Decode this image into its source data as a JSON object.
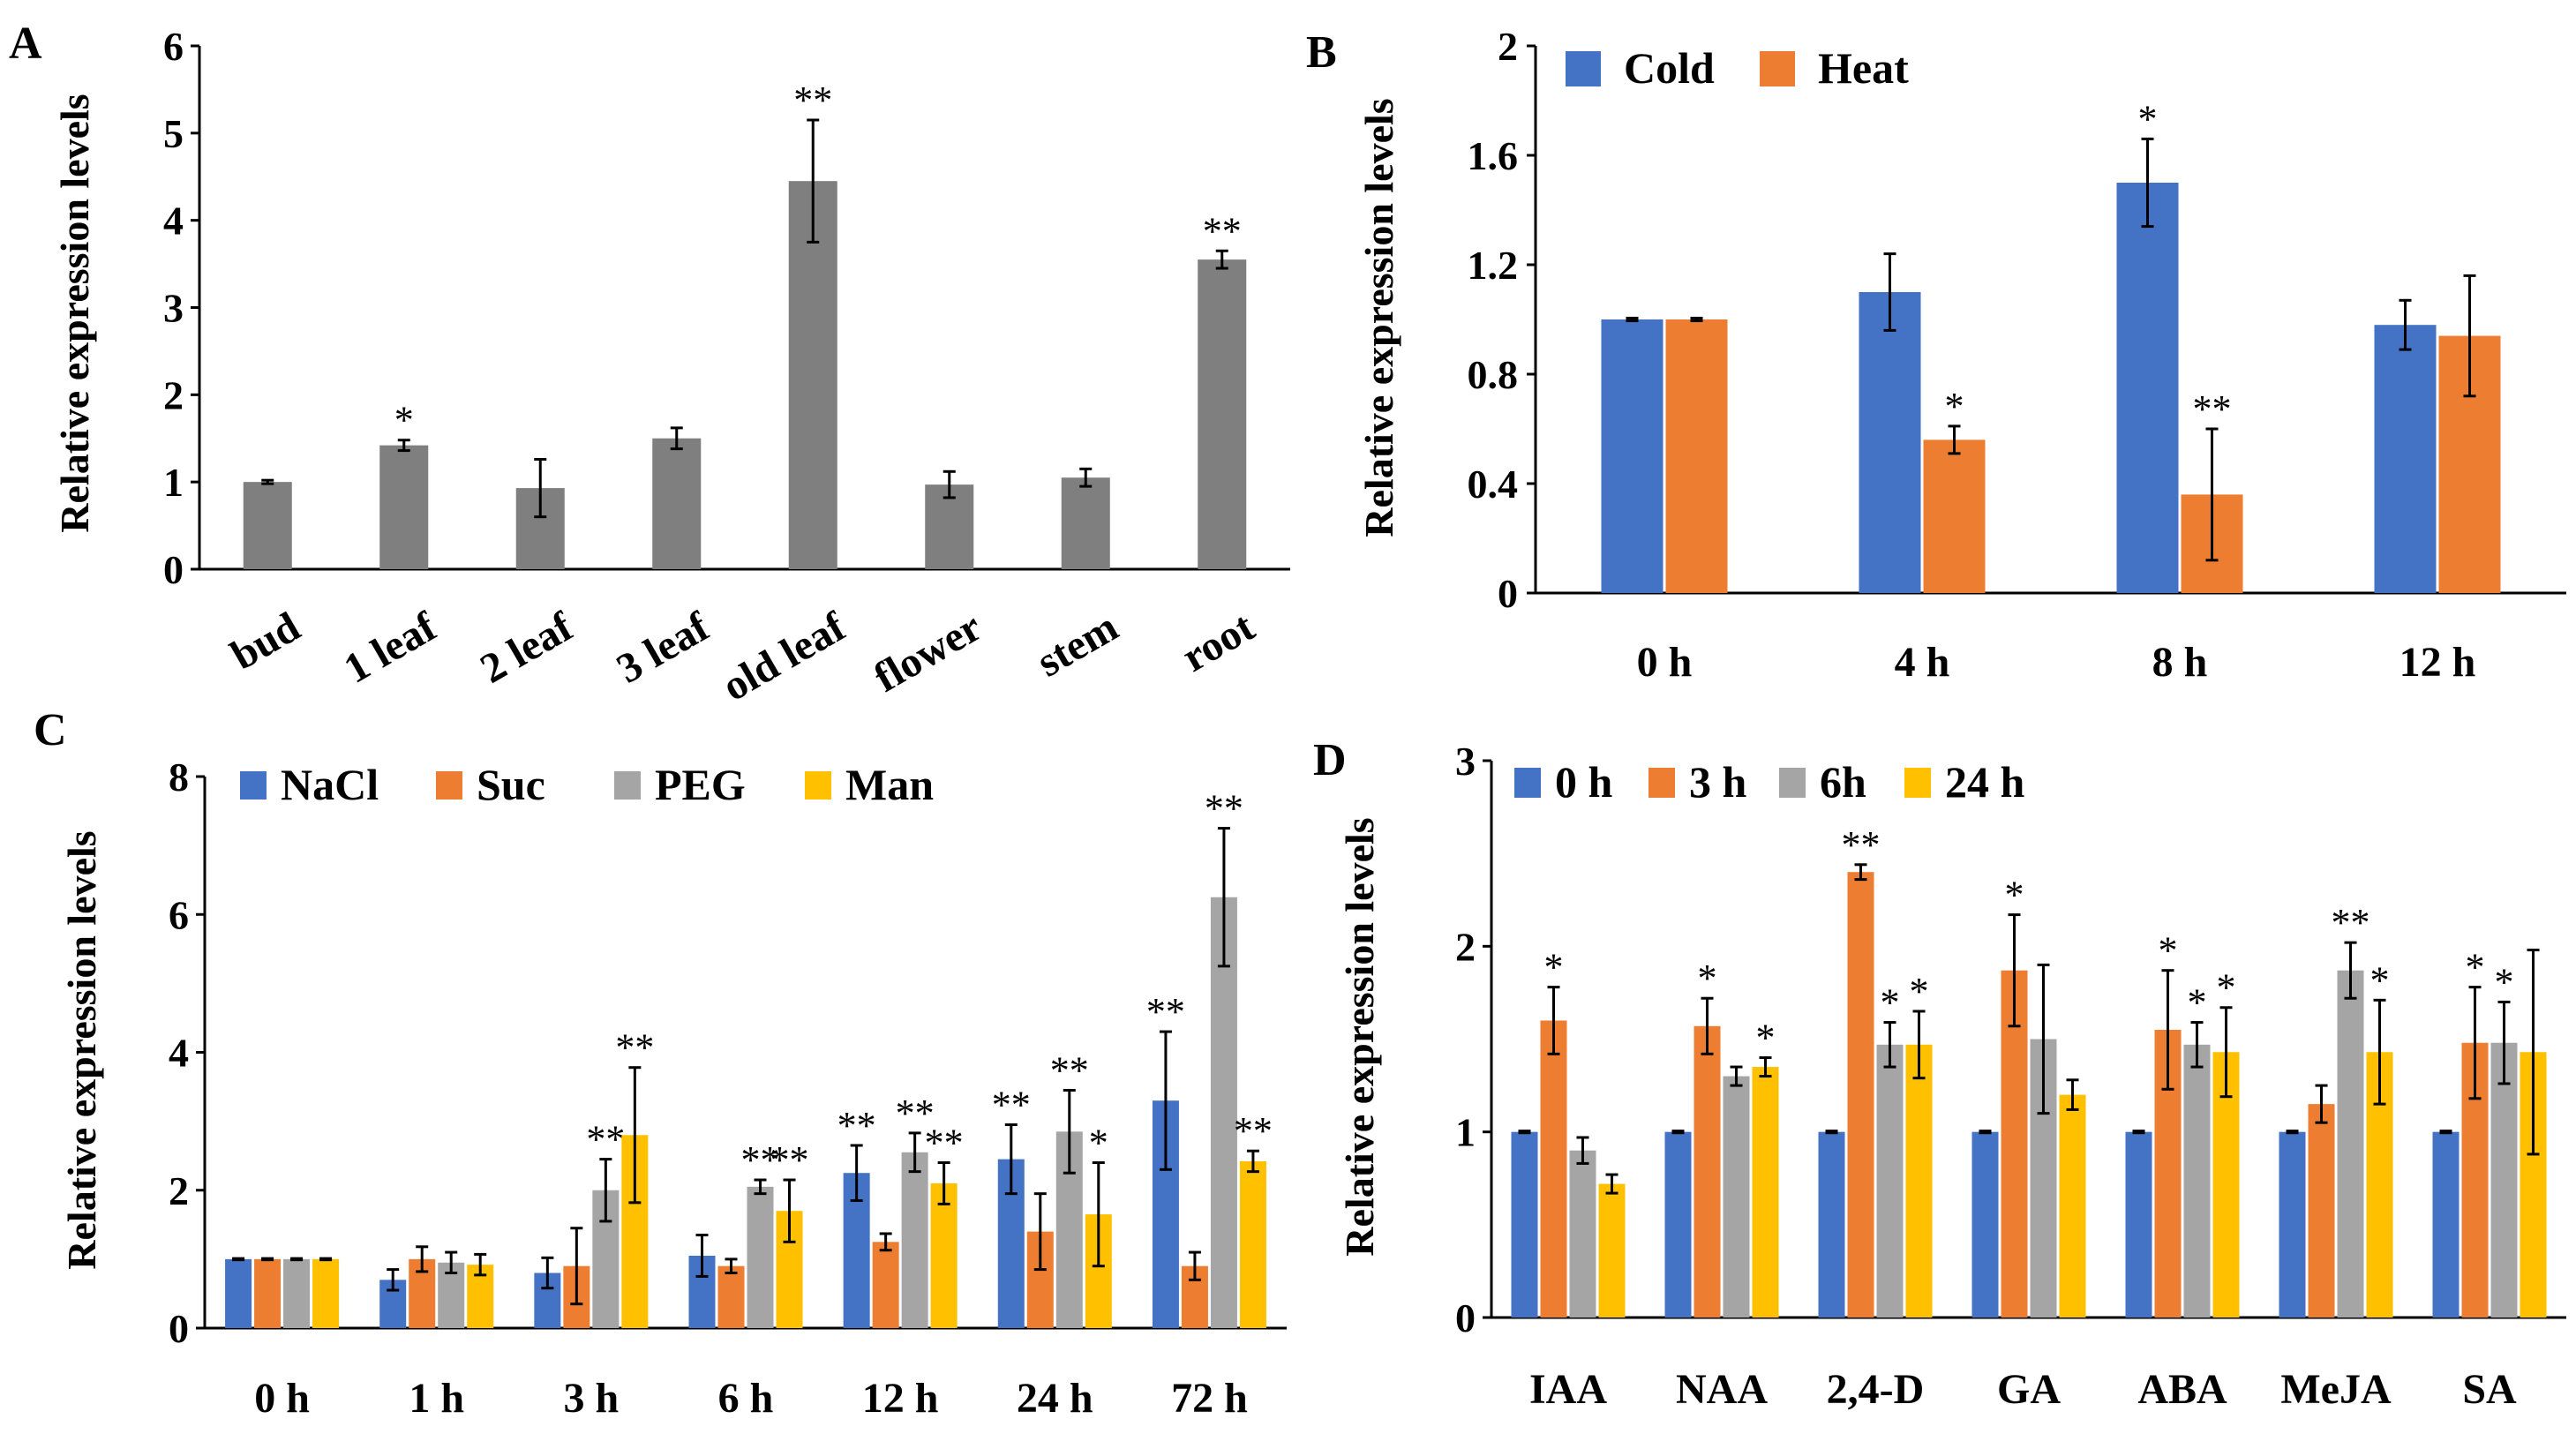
{
  "chart_data": [
    {
      "panel": "A",
      "type": "bar",
      "ylabel": "Relative expression levels",
      "ylim": [
        0,
        6
      ],
      "yticks": [
        "0",
        "1",
        "2",
        "3",
        "4",
        "5",
        "6"
      ],
      "categories": [
        "bud",
        "1 leaf",
        "2 leaf",
        "3 leaf",
        "old leaf",
        "flower",
        "stem",
        "root"
      ],
      "series": [
        {
          "name": "",
          "color": "#7f7f7f",
          "values": [
            1.0,
            1.42,
            0.93,
            1.5,
            4.45,
            0.97,
            1.05,
            3.55
          ],
          "errors": [
            0.02,
            0.06,
            0.33,
            0.12,
            0.7,
            0.15,
            0.1,
            0.1
          ],
          "sig": [
            "",
            "*",
            "",
            "",
            "**",
            "",
            "",
            "**"
          ]
        }
      ]
    },
    {
      "panel": "B",
      "type": "bar",
      "ylabel": "Relative expression levels",
      "ylim": [
        0,
        2
      ],
      "yticks": [
        "0",
        "0.4",
        "0.8",
        "1.2",
        "1.6",
        "2"
      ],
      "categories": [
        "0 h",
        "4 h",
        "8 h",
        "12 h"
      ],
      "legend": [
        "Cold",
        "Heat"
      ],
      "series": [
        {
          "name": "Cold",
          "color": "#4472c4",
          "values": [
            1.0,
            1.1,
            1.5,
            0.98
          ],
          "errors": [
            0.005,
            0.14,
            0.16,
            0.09
          ],
          "sig": [
            "",
            "",
            "*",
            ""
          ]
        },
        {
          "name": "Heat",
          "color": "#ed7d31",
          "values": [
            1.0,
            0.56,
            0.36,
            0.94
          ],
          "errors": [
            0.005,
            0.05,
            0.24,
            0.22
          ],
          "sig": [
            "",
            "*",
            "**",
            ""
          ]
        }
      ]
    },
    {
      "panel": "C",
      "type": "bar",
      "ylabel": "Relative expression levels",
      "ylim": [
        0,
        8
      ],
      "yticks": [
        "0",
        "2",
        "4",
        "6",
        "8"
      ],
      "categories": [
        "0 h",
        "1 h",
        "3 h",
        "6 h",
        "12 h",
        "24 h",
        "72 h"
      ],
      "legend": [
        "NaCl",
        "Suc",
        "PEG",
        "Man"
      ],
      "series": [
        {
          "name": "NaCl",
          "color": "#4472c4",
          "values": [
            1.0,
            0.7,
            0.8,
            1.05,
            2.25,
            2.45,
            3.3
          ],
          "errors": [
            0.01,
            0.15,
            0.22,
            0.3,
            0.4,
            0.5,
            1.0
          ],
          "sig": [
            "",
            "",
            "",
            "",
            "**",
            "**",
            "**"
          ]
        },
        {
          "name": "Suc",
          "color": "#ed7d31",
          "values": [
            1.0,
            1.0,
            0.9,
            0.9,
            1.25,
            1.4,
            0.9
          ],
          "errors": [
            0.01,
            0.18,
            0.55,
            0.1,
            0.12,
            0.55,
            0.2
          ],
          "sig": [
            "",
            "",
            "",
            "",
            "",
            "",
            ""
          ]
        },
        {
          "name": "PEG",
          "color": "#a5a5a5",
          "values": [
            1.0,
            0.95,
            2.0,
            2.05,
            2.55,
            2.85,
            6.25
          ],
          "errors": [
            0.01,
            0.15,
            0.45,
            0.1,
            0.28,
            0.6,
            1.0
          ],
          "sig": [
            "",
            "",
            "**",
            "**",
            "**",
            "**",
            "**"
          ]
        },
        {
          "name": "Man",
          "color": "#ffc000",
          "values": [
            1.0,
            0.92,
            2.8,
            1.7,
            2.1,
            1.65,
            2.42
          ],
          "errors": [
            0.01,
            0.15,
            0.98,
            0.45,
            0.3,
            0.75,
            0.15
          ],
          "sig": [
            "",
            "",
            "**",
            "**",
            "**",
            "*",
            "**"
          ]
        }
      ]
    },
    {
      "panel": "D",
      "type": "bar",
      "ylabel": "Relative expression levels",
      "ylim": [
        0,
        3
      ],
      "yticks": [
        "0",
        "1",
        "2",
        "3"
      ],
      "categories": [
        "IAA",
        "NAA",
        "2,4-D",
        "GA",
        "ABA",
        "MeJA",
        "SA"
      ],
      "legend": [
        "0 h",
        "3 h",
        "6h",
        "24 h"
      ],
      "series": [
        {
          "name": "0 h",
          "color": "#4472c4",
          "values": [
            1.0,
            1.0,
            1.0,
            1.0,
            1.0,
            1.0,
            1.0
          ],
          "errors": [
            0.005,
            0.005,
            0.005,
            0.005,
            0.005,
            0.005,
            0.005
          ],
          "sig": [
            "",
            "",
            "",
            "",
            "",
            "",
            ""
          ]
        },
        {
          "name": "3 h",
          "color": "#ed7d31",
          "values": [
            1.6,
            1.57,
            2.4,
            1.87,
            1.55,
            1.15,
            1.48
          ],
          "errors": [
            0.18,
            0.15,
            0.04,
            0.3,
            0.32,
            0.1,
            0.3
          ],
          "sig": [
            "*",
            "*",
            "**",
            "*",
            "*",
            "",
            "*"
          ]
        },
        {
          "name": "6h",
          "color": "#a5a5a5",
          "values": [
            0.9,
            1.3,
            1.47,
            1.5,
            1.47,
            1.87,
            1.48
          ],
          "errors": [
            0.07,
            0.05,
            0.12,
            0.4,
            0.12,
            0.15,
            0.22
          ],
          "sig": [
            "",
            "",
            "*",
            "",
            "*",
            "**",
            "*"
          ]
        },
        {
          "name": "24 h",
          "color": "#ffc000",
          "values": [
            0.72,
            1.35,
            1.47,
            1.2,
            1.43,
            1.43,
            1.43
          ],
          "errors": [
            0.05,
            0.05,
            0.18,
            0.08,
            0.24,
            0.28,
            0.55
          ],
          "sig": [
            "",
            "*",
            "*",
            "",
            "*",
            "*",
            ""
          ]
        }
      ]
    }
  ]
}
